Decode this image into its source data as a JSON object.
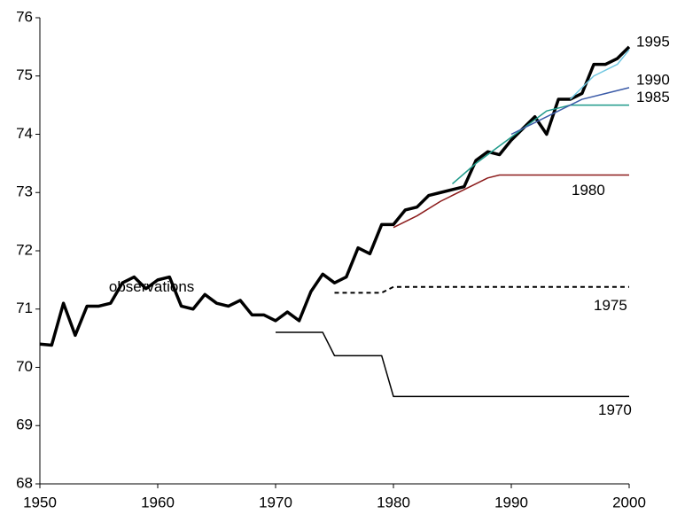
{
  "chart_data": {
    "type": "line",
    "xlim": [
      1950,
      2000
    ],
    "xticks": [
      1950,
      1960,
      1970,
      1980,
      1990,
      2000
    ],
    "ylim": [
      68,
      76
    ],
    "yticks": [
      68,
      69,
      70,
      71,
      72,
      73,
      74,
      75,
      76
    ],
    "series": [
      {
        "name": "observations",
        "color": "#000000",
        "width": 3.5,
        "dashed": false,
        "x": [
          1950,
          1951,
          1952,
          1953,
          1954,
          1955,
          1956,
          1957,
          1958,
          1959,
          1960,
          1961,
          1962,
          1963,
          1964,
          1965,
          1966,
          1967,
          1968,
          1969,
          1970,
          1971,
          1972,
          1973,
          1974,
          1975,
          1976,
          1977,
          1978,
          1979,
          1980,
          1981,
          1982,
          1983,
          1984,
          1985,
          1986,
          1987,
          1988,
          1989,
          1990,
          1991,
          1992,
          1993,
          1994,
          1995,
          1996,
          1997,
          1998,
          1999,
          2000
        ],
        "values": [
          70.4,
          70.38,
          71.1,
          70.55,
          71.05,
          71.05,
          71.1,
          71.45,
          71.55,
          71.35,
          71.5,
          71.55,
          71.05,
          71.0,
          71.25,
          71.1,
          71.05,
          71.15,
          70.9,
          70.9,
          70.8,
          70.95,
          70.8,
          71.3,
          71.6,
          71.45,
          71.55,
          72.05,
          71.95,
          72.45,
          72.45,
          72.7,
          72.75,
          72.95,
          73.0,
          73.05,
          73.1,
          73.55,
          73.7,
          73.65,
          73.9,
          74.1,
          74.3,
          74.0,
          74.6,
          74.6,
          74.7,
          75.2,
          75.2,
          75.3,
          75.5
        ]
      },
      {
        "name": "1970",
        "color": "#000000",
        "width": 1.5,
        "dashed": false,
        "x": [
          1970,
          1974,
          1975,
          1979,
          1980,
          2000
        ],
        "values": [
          70.6,
          70.6,
          70.2,
          70.2,
          69.5,
          69.5
        ]
      },
      {
        "name": "1975",
        "color": "#000000",
        "width": 2,
        "dashed": true,
        "x": [
          1975,
          1979,
          1980,
          2000
        ],
        "values": [
          71.28,
          71.28,
          71.38,
          71.38
        ]
      },
      {
        "name": "1980",
        "color": "#8b1a1a",
        "width": 1.5,
        "dashed": false,
        "x": [
          1980,
          1982,
          1984,
          1986,
          1988,
          1989,
          2000
        ],
        "values": [
          72.4,
          72.6,
          72.85,
          73.05,
          73.25,
          73.3,
          73.3
        ]
      },
      {
        "name": "1985",
        "color": "#1f9a8a",
        "width": 1.5,
        "dashed": false,
        "x": [
          1985,
          1987,
          1989,
          1991,
          1993,
          1995,
          2000
        ],
        "values": [
          73.15,
          73.5,
          73.8,
          74.1,
          74.4,
          74.5,
          74.5
        ]
      },
      {
        "name": "1990",
        "color": "#3b5ba8",
        "width": 1.5,
        "dashed": false,
        "x": [
          1990,
          1992,
          1994,
          1996,
          1998,
          2000
        ],
        "values": [
          74.0,
          74.2,
          74.4,
          74.6,
          74.7,
          74.8
        ]
      },
      {
        "name": "1995",
        "color": "#6ec6e0",
        "width": 1.5,
        "dashed": false,
        "x": [
          1995,
          1997,
          1999,
          2000
        ],
        "values": [
          74.6,
          75.0,
          75.2,
          75.45
        ]
      }
    ]
  }
}
